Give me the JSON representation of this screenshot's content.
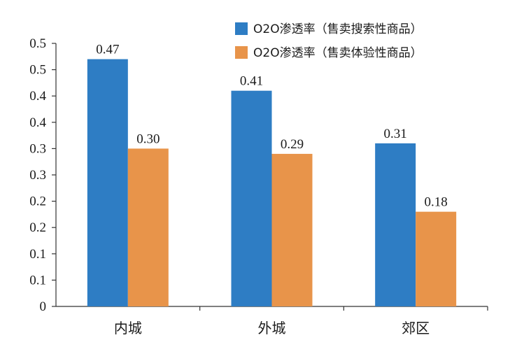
{
  "chart_data": {
    "type": "bar",
    "categories": [
      "内城",
      "外城",
      "郊区"
    ],
    "series": [
      {
        "name": "O2O渗透率（售卖搜索性商品）",
        "values": [
          0.47,
          0.41,
          0.31
        ],
        "labels": [
          "0.47",
          "0.41",
          "0.31"
        ],
        "color": "#2e7dc4"
      },
      {
        "name": "O2O渗透率（售卖体验性商品）",
        "values": [
          0.3,
          0.29,
          0.18
        ],
        "labels": [
          "0.30",
          "0.29",
          "0.18"
        ],
        "color": "#e8944a"
      }
    ],
    "yticks": [
      "0",
      "0.1",
      "0.1",
      "0.2",
      "0.2",
      "0.3",
      "0.3",
      "0.4",
      "0.4",
      "0.5",
      "0.5"
    ],
    "ylim": [
      0,
      0.5
    ],
    "xlabel": "",
    "ylabel": "",
    "grid": false,
    "legend_position": "top-right"
  }
}
